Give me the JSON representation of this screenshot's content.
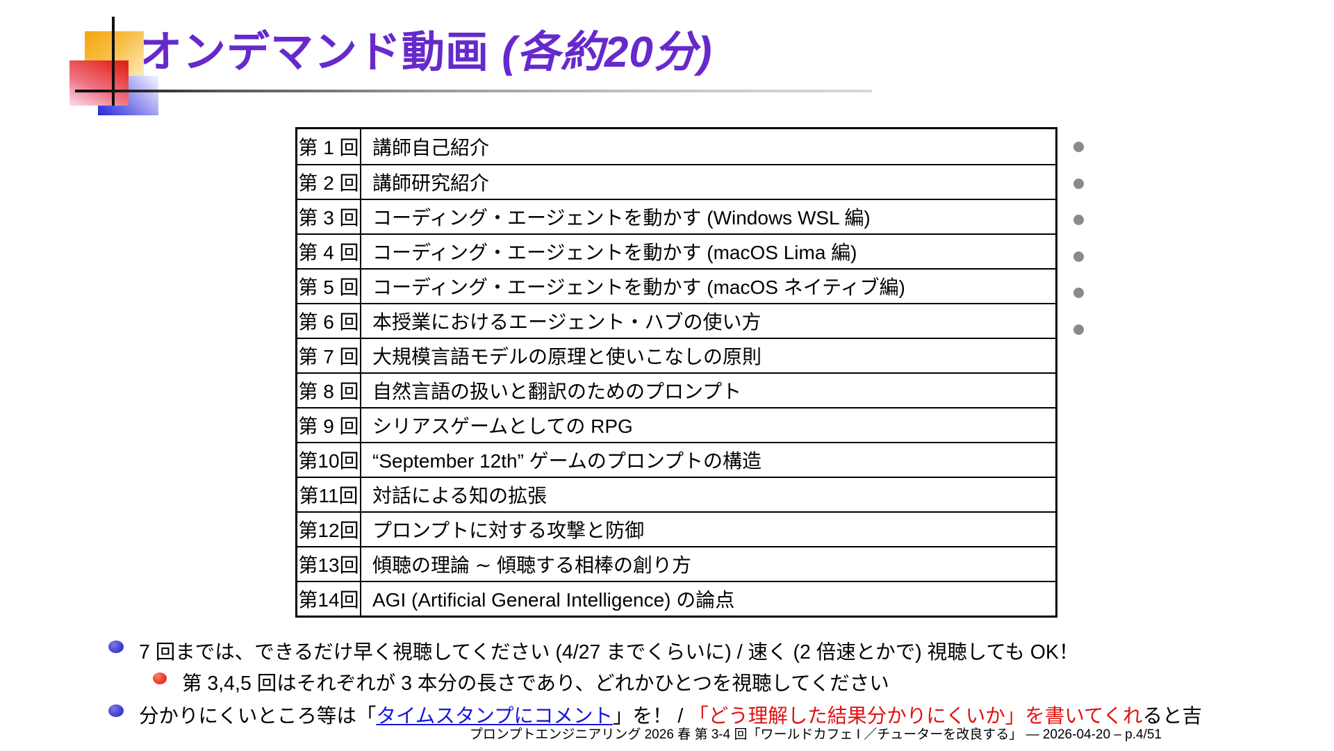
{
  "title": {
    "main": "オンデマンド動画",
    "paren": "(各約20分)"
  },
  "table": {
    "rows": [
      {
        "no": "第 1 回",
        "title": "講師自己紹介"
      },
      {
        "no": "第 2 回",
        "title": "講師研究紹介"
      },
      {
        "no": "第 3 回",
        "title": "コーディング・エージェントを動かす (Windows WSL 編)"
      },
      {
        "no": "第 4 回",
        "title": "コーディング・エージェントを動かす (macOS Lima 編)"
      },
      {
        "no": "第 5 回",
        "title": "コーディング・エージェントを動かす (macOS ネイティブ編)"
      },
      {
        "no": "第 6 回",
        "title": "本授業におけるエージェント・ハブの使い方"
      },
      {
        "no": "第 7 回",
        "title": "大規模言語モデルの原理と使いこなしの原則"
      },
      {
        "no": "第 8 回",
        "title": "自然言語の扱いと翻訳のためのプロンプト"
      },
      {
        "no": "第 9 回",
        "title": "シリアスゲームとしての RPG"
      },
      {
        "no": "第10回",
        "title": "“September 12th” ゲームのプロンプトの構造"
      },
      {
        "no": "第11回",
        "title": "対話による知の拡張"
      },
      {
        "no": "第12回",
        "title": "プロンプトに対する攻撃と防御"
      },
      {
        "no": "第13回",
        "title": "傾聴の理論 ∼ 傾聴する相棒の創り方"
      },
      {
        "no": "第14回",
        "title": "AGI (Artificial General Intelligence) の論点"
      }
    ],
    "marker_rows": [
      0,
      1,
      2,
      3,
      4,
      5
    ]
  },
  "bullets": {
    "b1": "7 回までは、できるだけ早く視聴してください (4/27 までくらいに)  /  速く (2 倍速とかで) 視聴しても OK！",
    "sub1": "第 3,4,5 回はそれぞれが 3 本分の長さであり、どれかひとつを視聴してください",
    "b2": {
      "seg1": "分かりにくいところ等は「",
      "link": "タイムスタンプにコメント",
      "seg2": "」を！  /  ",
      "red": "「どう理解した結果分かりにくいか」を書いてくれ",
      "seg3": "ると吉"
    }
  },
  "footer": "プロンプトエンジニアリング 2026 春 第 3-4 回「ワールドカフェ I ／チューターを改良する」 — 2026-04-20 – p.4/51",
  "colors": {
    "title_purple": "#6629cc",
    "bullet_blue": "#3737cf",
    "bullet_red": "#ee2b1a",
    "link_blue": "#1515dd",
    "text_red": "#e01212",
    "marker_gray": "#8a8a8a"
  }
}
